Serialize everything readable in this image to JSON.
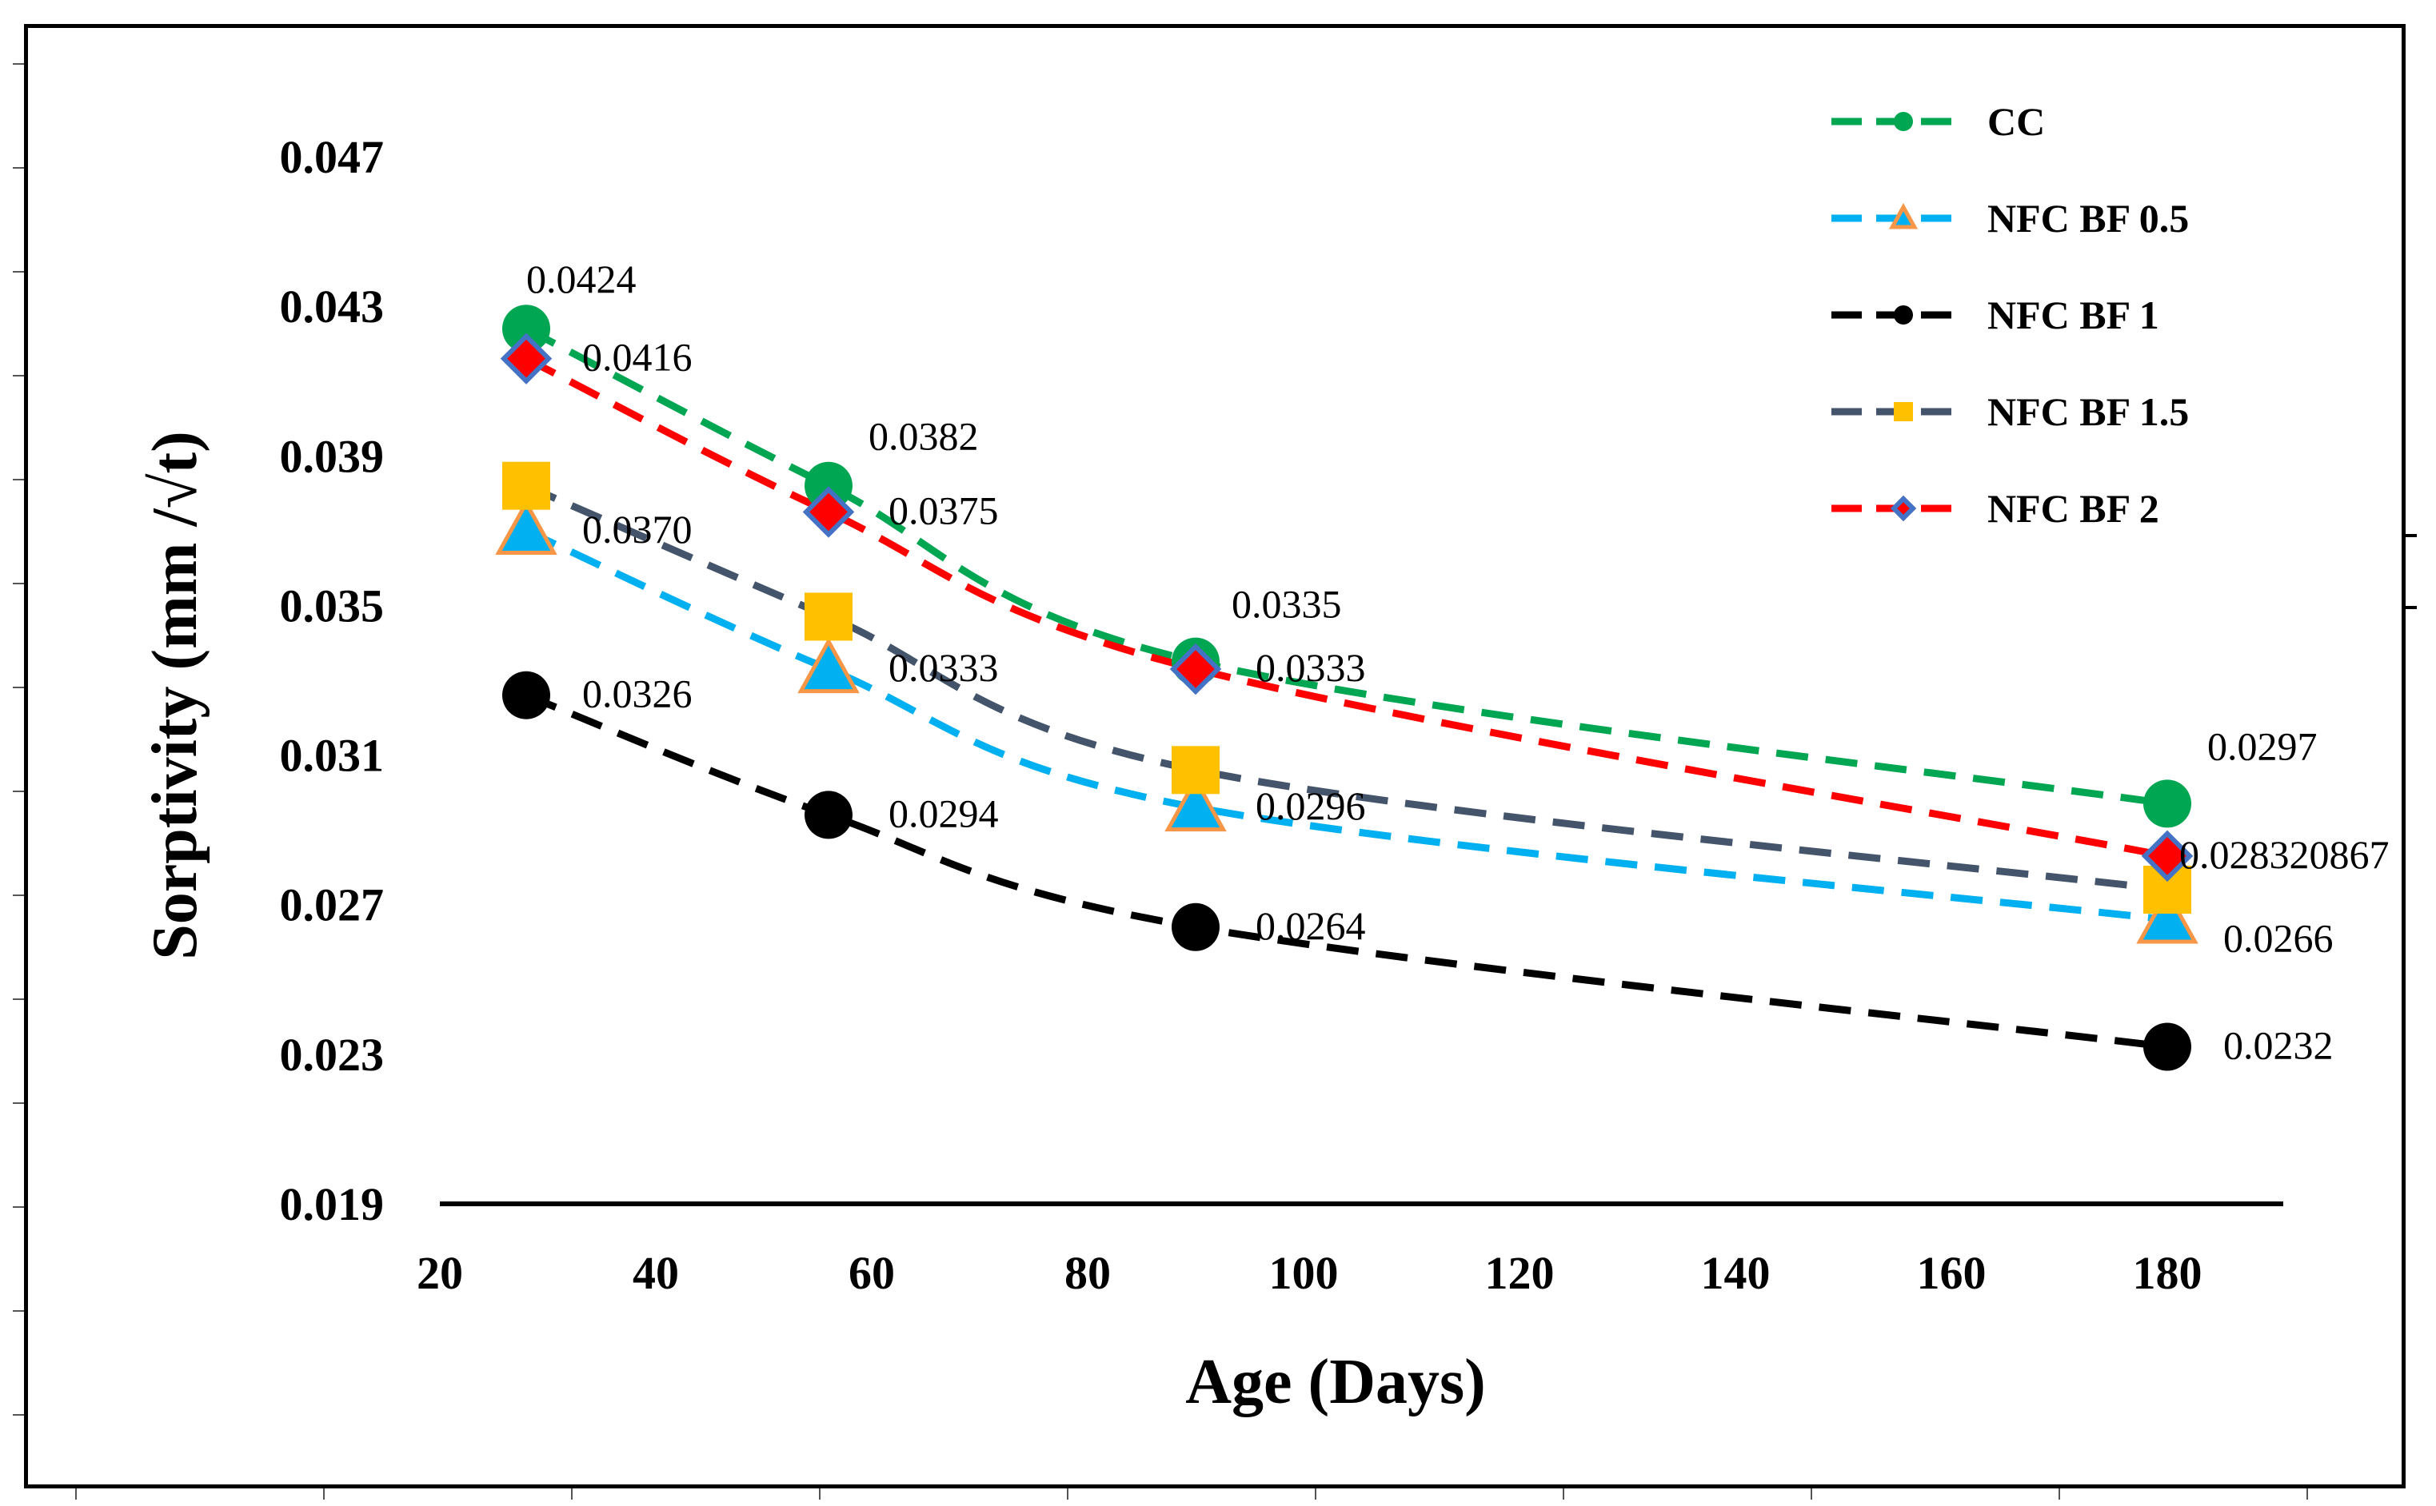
{
  "chart_data": {
    "type": "line",
    "title": "",
    "xlabel": "Age (Days)",
    "ylabel": "Sorptivity (mm /√t)",
    "xlim": [
      20,
      190
    ],
    "ylim": [
      0.019,
      0.05
    ],
    "xticks": [
      "20",
      "40",
      "60",
      "80",
      "100",
      "120",
      "140",
      "160",
      "180"
    ],
    "yticks": [
      "0.019",
      "0.023",
      "0.027",
      "0.031",
      "0.035",
      "0.039",
      "0.043",
      "0.047"
    ],
    "legend_position": "top-right",
    "x": [
      28,
      56,
      90,
      180
    ],
    "series": [
      {
        "name": "CC",
        "color": "#00a651",
        "marker": "circle",
        "values": [
          0.0424,
          0.0382,
          0.0335,
          0.0297
        ],
        "labels": [
          "0.0424",
          "0.0382",
          "0.0335",
          "0.0297"
        ]
      },
      {
        "name": "NFC BF 0.5",
        "color": "#00b0f0",
        "marker": "triangle",
        "values": [
          0.037,
          0.0333,
          0.0296,
          0.0266
        ],
        "labels": [
          "0.0370",
          "0.0333",
          "0.0296",
          "0.0266"
        ]
      },
      {
        "name": "NFC BF 1",
        "color": "#000000",
        "marker": "circle",
        "values": [
          0.0326,
          0.0294,
          0.0264,
          0.0232
        ],
        "labels": [
          "0.0326",
          "0.0294",
          "0.0264",
          "0.0232"
        ]
      },
      {
        "name": "NFC BF 1.5",
        "color": "#44546a",
        "marker": "square",
        "values": [
          0.0382,
          0.0347,
          0.0306,
          0.0274
        ],
        "labels": []
      },
      {
        "name": "NFC BF 2",
        "color": "#ff0000",
        "marker": "diamond",
        "values": [
          0.0416,
          0.0375,
          0.0333,
          0.0283
        ],
        "labels": [
          "0.0416",
          "0.0375",
          "0.0333",
          "0.028320867"
        ]
      }
    ]
  }
}
